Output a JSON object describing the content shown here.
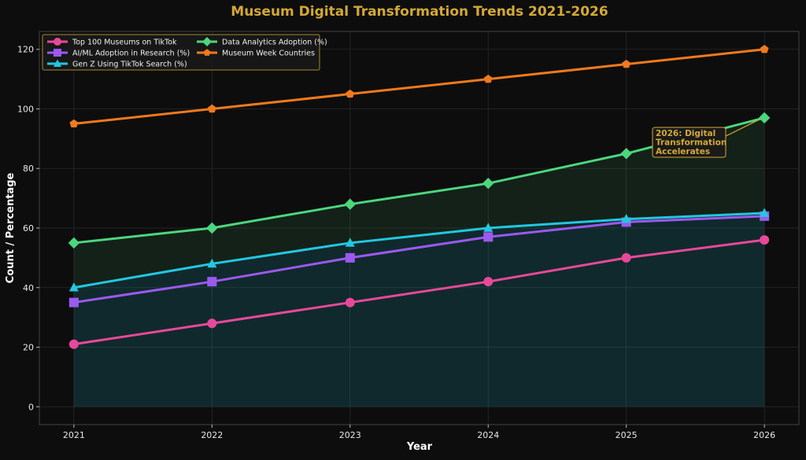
{
  "chart_data": {
    "type": "line",
    "title": "Museum Digital Transformation Trends 2021-2026",
    "xlabel": "Year",
    "ylabel": "Count / Percentage",
    "x": [
      2021,
      2022,
      2023,
      2024,
      2025,
      2026
    ],
    "x_tick_labels": [
      "2021",
      "2022",
      "2023",
      "2024",
      "2025",
      "2026"
    ],
    "ylim": [
      -6,
      126
    ],
    "y_ticks": [
      0,
      20,
      40,
      60,
      80,
      100,
      120
    ],
    "y_tick_labels": [
      "0",
      "20",
      "40",
      "60",
      "80",
      "100",
      "120"
    ],
    "grid": true,
    "legend_position": "top-left",
    "series": [
      {
        "name": "Top 100 Museums on TikTok",
        "values": [
          21,
          28,
          35,
          42,
          50,
          56
        ],
        "color": "#e8489a",
        "marker": "circle"
      },
      {
        "name": "AI/ML Adoption in Research (%)",
        "values": [
          35,
          42,
          50,
          57,
          62,
          64
        ],
        "color": "#9b59f0",
        "marker": "square"
      },
      {
        "name": "Gen Z Using TikTok Search (%)",
        "values": [
          40,
          48,
          55,
          60,
          63,
          65
        ],
        "color": "#22c7e0",
        "marker": "triangle"
      },
      {
        "name": "Data Analytics Adoption (%)",
        "values": [
          55,
          60,
          68,
          75,
          85,
          97
        ],
        "color": "#4cd67e",
        "marker": "diamond"
      },
      {
        "name": "Museum Week Countries",
        "values": [
          95,
          100,
          105,
          110,
          115,
          120
        ],
        "color": "#f07a1e",
        "marker": "pentagon"
      }
    ],
    "annotations": [
      {
        "text": "2026: Digital Transformation Accelerates",
        "lines": [
          "2026: Digital",
          "Transformation",
          "Accelerates"
        ],
        "x": 2026,
        "y": 97
      }
    ],
    "colors": {
      "background": "#0d0d0d",
      "title": "#d4a935",
      "grid": "#2a2a2a",
      "axis": "#444444"
    }
  }
}
